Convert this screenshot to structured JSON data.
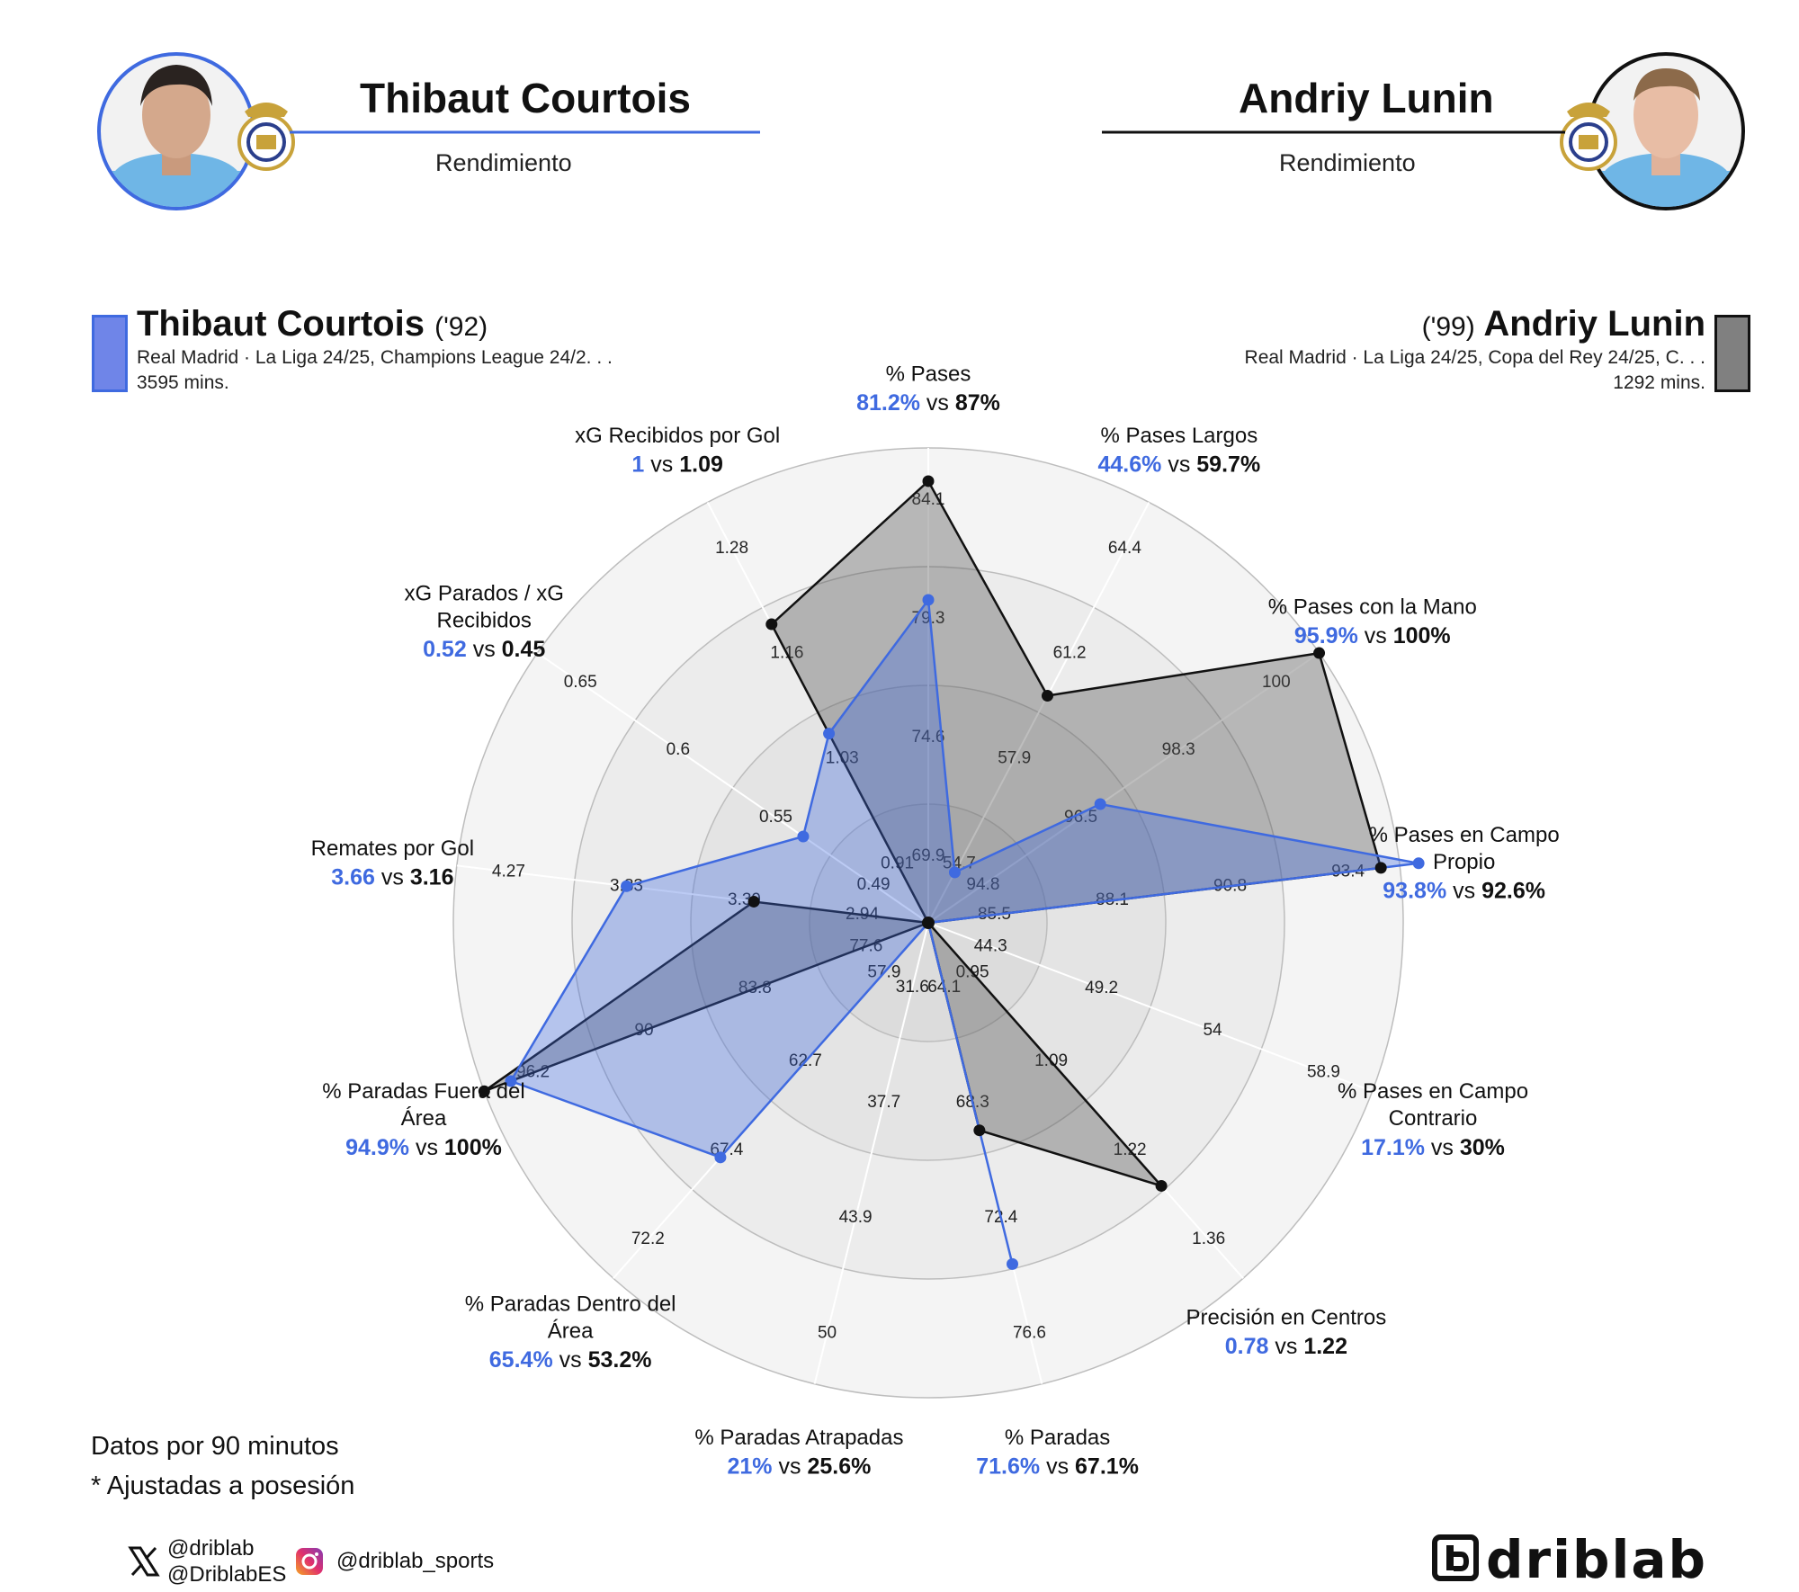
{
  "header": {
    "left": {
      "name": "Thibaut Courtois",
      "subtitle": "Rendimiento"
    },
    "right": {
      "name": "Andriy Lunin",
      "subtitle": "Rendimiento"
    }
  },
  "players": [
    {
      "name": "Thibaut Courtois",
      "year": "('92)",
      "info": "Real Madrid · La Liga 24/25, Champions League 24/2. . .",
      "minutes": "3595 mins.",
      "color": "#3f6ae0"
    },
    {
      "name": "Andriy Lunin",
      "year": "('99)",
      "info": "Real Madrid · La Liga 24/25, Copa del Rey 24/25, C. . .",
      "minutes": "1292 mins.",
      "color": "#111111"
    }
  ],
  "chart_data": {
    "type": "radar",
    "series": [
      {
        "name": "Thibaut Courtois",
        "values": [
          81.2,
          44.6,
          95.9,
          93.8,
          17.1,
          0.78,
          71.6,
          21,
          65.4,
          94.9,
          3.66,
          0.52,
          1
        ]
      },
      {
        "name": "Andriy Lunin",
        "values": [
          87,
          59.7,
          100,
          92.6,
          30,
          1.22,
          67.1,
          25.6,
          53.2,
          100,
          3.16,
          0.45,
          1.09
        ]
      }
    ],
    "axes": [
      {
        "label": [
          "% Pases"
        ],
        "p1": "81.2%",
        "p2": "87%",
        "ticks": [
          "69.9",
          "74.6",
          "79.3",
          "84.1"
        ],
        "r": [
          0,
          0.68,
          0.93
        ]
      },
      {
        "label": [
          "% Pases Largos"
        ],
        "p1": "44.6%",
        "p2": "59.7%",
        "ticks": [
          "54.7",
          "57.9",
          "61.2",
          "64.4"
        ],
        "r": [
          0,
          0.12,
          0.54
        ]
      },
      {
        "label": [
          "% Pases con la Mano"
        ],
        "p1": "95.9%",
        "p2": "100%",
        "ticks": [
          "94.8",
          "96.5",
          "98.3",
          "100"
        ],
        "r": [
          0,
          0.44,
          1.0
        ]
      },
      {
        "label": [
          "% Pases en Campo",
          "Propio"
        ],
        "p1": "93.8%",
        "p2": "92.6%",
        "ticks": [
          "85.5",
          "88.1",
          "90.8",
          "93.4"
        ],
        "r": [
          0,
          1.04,
          0.96
        ]
      },
      {
        "label": [
          "% Pases en Campo",
          "Contrario"
        ],
        "p1": "17.1%",
        "p2": "30%",
        "ticks": [
          "44.3",
          "49.2",
          "54",
          "58.9"
        ],
        "r": [
          0,
          0,
          0
        ]
      },
      {
        "label": [
          "Precisión en Centros"
        ],
        "p1": "0.78",
        "p2": "1.22",
        "ticks": [
          "0.95",
          "1.09",
          "1.22",
          "1.36"
        ],
        "r": [
          0,
          0,
          0.74
        ]
      },
      {
        "label": [
          "% Paradas"
        ],
        "p1": "71.6%",
        "p2": "67.1%",
        "ticks": [
          "64.1",
          "68.3",
          "72.4",
          "76.6"
        ],
        "r": [
          0,
          0.74,
          0.45
        ]
      },
      {
        "label": [
          "% Paradas Atrapadas"
        ],
        "p1": "21%",
        "p2": "25.6%",
        "ticks": [
          "31.6",
          "37.7",
          "43.9",
          "50"
        ],
        "r": [
          0,
          0,
          0
        ]
      },
      {
        "label": [
          "% Paradas Dentro del",
          "Área"
        ],
        "p1": "65.4%",
        "p2": "53.2%",
        "ticks": [
          "57.9",
          "62.7",
          "67.4",
          "72.2"
        ],
        "r": [
          0,
          0.66,
          0
        ]
      },
      {
        "label": [
          "% Paradas Fuera del",
          "Área"
        ],
        "p1": "94.9%",
        "p2": "100%",
        "ticks": [
          "77.6",
          "83.8",
          "90",
          "96.2"
        ],
        "r": [
          0,
          0.94,
          1.0
        ]
      },
      {
        "label": [
          "Remates por Gol"
        ],
        "p1": "3.66",
        "p2": "3.16",
        "ticks": [
          "2.94",
          "3.39",
          "3.83",
          "4.27"
        ],
        "r": [
          0,
          0.64,
          0.37
        ]
      },
      {
        "label": [
          "xG Parados / xG",
          "Recibidos"
        ],
        "p1": "0.52",
        "p2": "0.45",
        "ticks": [
          "0.49",
          "0.55",
          "0.6",
          "0.65"
        ],
        "r": [
          0,
          0.32,
          0
        ]
      },
      {
        "label": [
          "xG Recibidos por Gol"
        ],
        "p1": "1",
        "p2": "1.09",
        "ticks": [
          "0.91",
          "1.03",
          "1.16",
          "1.28"
        ],
        "r": [
          0,
          0.45,
          0.71
        ]
      }
    ]
  },
  "footer": {
    "line1": "Datos por 90 minutos",
    "line2": "* Ajustadas a posesión",
    "twitter1": "@driblab",
    "twitter2": "@DriblabES",
    "instagram": "@driblab_sports",
    "brand": "driblab"
  },
  "icons": {
    "left_photo": "player-photo-icon",
    "crest": "real-madrid-crest-icon",
    "x": "x-logo-icon",
    "instagram": "instagram-icon",
    "brand": "driblab-logo-icon"
  }
}
